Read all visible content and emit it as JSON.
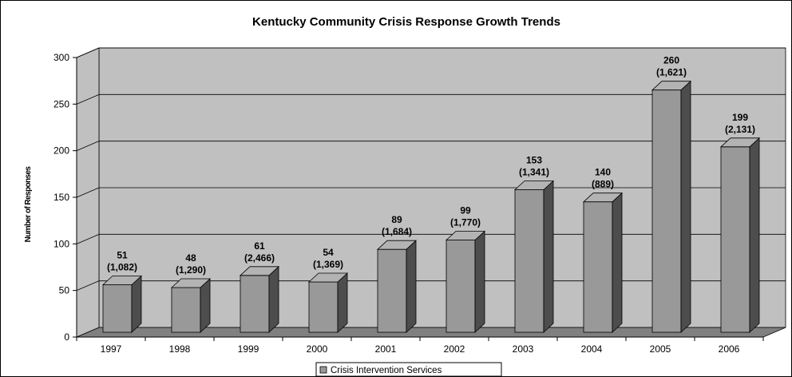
{
  "chart_data": {
    "type": "bar",
    "title": "Kentucky Community Crisis Response Growth Trends",
    "xlabel": "",
    "ylabel": "Number of Responses",
    "ylim": [
      0,
      300
    ],
    "yticks": [
      0,
      50,
      100,
      150,
      200,
      250,
      300
    ],
    "grid": true,
    "legend_position": "bottom",
    "style": "3d",
    "categories": [
      "1997",
      "1998",
      "1999",
      "2000",
      "2001",
      "2002",
      "2003",
      "2004",
      "2005",
      "2006"
    ],
    "series": [
      {
        "name": "Crisis Intervention Services",
        "values": [
          51,
          48,
          61,
          54,
          89,
          99,
          153,
          140,
          260,
          199
        ],
        "secondary_labels": [
          "(1,082)",
          "(1,290)",
          "(2,466)",
          "(1,369)",
          "(1,684)",
          "(1,770)",
          "(1,341)",
          "(889)",
          "(1,621)",
          "(2,131)"
        ]
      }
    ],
    "colors": {
      "wall": "#c0c0c0",
      "floor": "#808080",
      "bar_front": "#999999",
      "bar_side": "#4d4d4d",
      "bar_top": "#b3b3b3"
    }
  }
}
